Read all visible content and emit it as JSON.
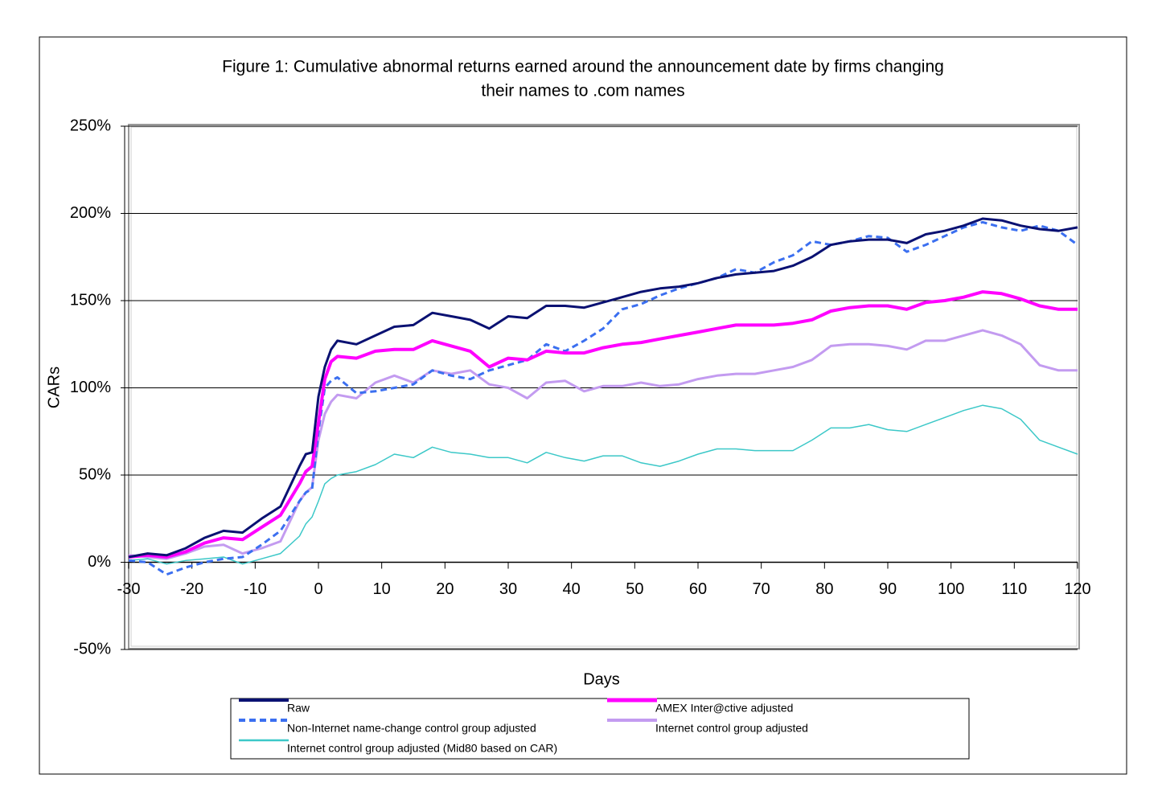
{
  "chart_data": {
    "type": "line",
    "title": [
      "Figure 1: Cumulative abnormal returns earned around the announcement date by firms changing",
      "their names to .com names"
    ],
    "x_label": "Days",
    "y_label": "CARs",
    "xlim": [
      -30,
      120
    ],
    "xticks": [
      -30,
      -20,
      -10,
      0,
      10,
      20,
      30,
      40,
      50,
      60,
      70,
      80,
      90,
      100,
      110,
      120
    ],
    "ylim": [
      -50,
      250
    ],
    "yticks": [
      {
        "value": -50,
        "label": "-50%"
      },
      {
        "value": 0,
        "label": "0%"
      },
      {
        "value": 50,
        "label": "50%"
      },
      {
        "value": 100,
        "label": "100%"
      },
      {
        "value": 150,
        "label": "150%"
      },
      {
        "value": 200,
        "label": "200%"
      },
      {
        "value": 250,
        "label": "250%"
      }
    ],
    "grid": true,
    "x": [
      -30,
      -27,
      -24,
      -21,
      -18,
      -15,
      -12,
      -9,
      -6,
      -3,
      -2,
      -1,
      0,
      1,
      2,
      3,
      6,
      9,
      12,
      15,
      18,
      21,
      24,
      27,
      30,
      33,
      36,
      39,
      42,
      45,
      48,
      51,
      54,
      57,
      60,
      63,
      66,
      69,
      72,
      75,
      78,
      81,
      84,
      87,
      90,
      93,
      96,
      99,
      102,
      105,
      108,
      111,
      114,
      117,
      120
    ],
    "series": [
      {
        "name": "Raw",
        "color": "#0a1172",
        "width": 3,
        "dash": "none",
        "values": [
          3,
          5,
          4,
          8,
          14,
          18,
          17,
          25,
          32,
          55,
          62,
          63,
          95,
          112,
          122,
          127,
          125,
          130,
          135,
          136,
          143,
          141,
          139,
          134,
          141,
          140,
          147,
          147,
          146,
          149,
          152,
          155,
          157,
          158,
          160,
          163,
          165,
          166,
          167,
          170,
          175,
          182,
          184,
          185,
          185,
          183,
          188,
          190,
          193,
          197,
          196,
          193,
          191,
          190,
          192
        ]
      },
      {
        "name": "AMEX Inter@ctive adjusted",
        "color": "#ff00ff",
        "width": 4,
        "dash": "none",
        "values": [
          3,
          4,
          3,
          6,
          11,
          14,
          13,
          20,
          27,
          45,
          52,
          55,
          80,
          105,
          115,
          118,
          117,
          121,
          122,
          122,
          127,
          124,
          121,
          112,
          117,
          116,
          121,
          120,
          120,
          123,
          125,
          126,
          128,
          130,
          132,
          134,
          136,
          136,
          136,
          137,
          139,
          144,
          146,
          147,
          147,
          145,
          149,
          150,
          152,
          155,
          154,
          151,
          147,
          145,
          145
        ]
      },
      {
        "name": "Non-Internet name-change control group adjusted",
        "color": "#3b6ff0",
        "width": 3,
        "dash": "8 5",
        "values": [
          1,
          0,
          -7,
          -3,
          0,
          2,
          3,
          10,
          18,
          35,
          40,
          42,
          75,
          100,
          104,
          106,
          97,
          98,
          100,
          102,
          110,
          107,
          105,
          110,
          113,
          116,
          125,
          121,
          127,
          134,
          145,
          148,
          153,
          157,
          160,
          163,
          168,
          166,
          172,
          176,
          184,
          182,
          184,
          187,
          186,
          178,
          182,
          187,
          192,
          195,
          192,
          190,
          193,
          190,
          182
        ]
      },
      {
        "name": "Internet control group adjusted",
        "color": "#c39bf0",
        "width": 3,
        "dash": "none",
        "values": [
          4,
          3,
          2,
          5,
          9,
          10,
          5,
          8,
          12,
          35,
          40,
          43,
          70,
          85,
          92,
          96,
          94,
          103,
          107,
          103,
          110,
          108,
          110,
          102,
          100,
          94,
          103,
          104,
          98,
          101,
          101,
          103,
          101,
          102,
          105,
          107,
          108,
          108,
          110,
          112,
          116,
          124,
          125,
          125,
          124,
          122,
          127,
          127,
          130,
          133,
          130,
          125,
          113,
          110,
          110
        ]
      },
      {
        "name": "Internet control group adjusted (Mid80 based on CAR)",
        "color": "#3cc8c8",
        "width": 1.5,
        "dash": "none",
        "values": [
          1,
          2,
          -1,
          1,
          2,
          3,
          -1,
          2,
          5,
          15,
          22,
          26,
          35,
          45,
          48,
          50,
          52,
          56,
          62,
          60,
          66,
          63,
          62,
          60,
          60,
          57,
          63,
          60,
          58,
          61,
          61,
          57,
          55,
          58,
          62,
          65,
          65,
          64,
          64,
          64,
          70,
          77,
          77,
          79,
          76,
          75,
          79,
          83,
          87,
          90,
          88,
          82,
          70,
          66,
          62
        ]
      }
    ]
  }
}
